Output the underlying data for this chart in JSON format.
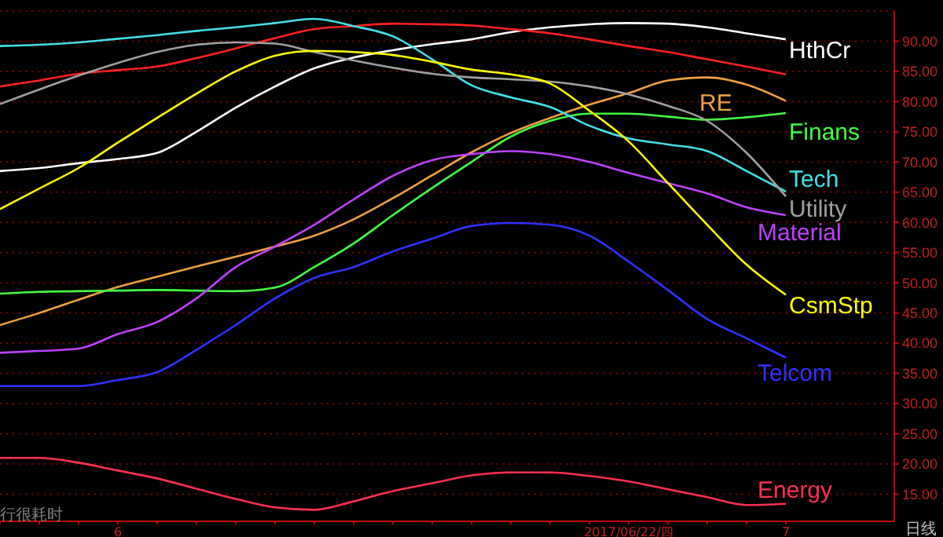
{
  "chart_data": {
    "type": "line",
    "categories": [
      null,
      null,
      null,
      "6",
      null,
      null,
      null,
      null,
      null,
      null,
      null,
      null,
      null,
      null,
      null,
      null,
      "2017/06/22/四",
      null,
      null,
      null,
      "7"
    ],
    "series": [
      {
        "name": "HthCr",
        "color": "#ffffff",
        "values": [
          68.5,
          69,
          69.8,
          70.5,
          71.5,
          75,
          79,
          82.5,
          85.5,
          87.3,
          88.5,
          89.5,
          90.3,
          91.5,
          92.3,
          92.8,
          93,
          92.9,
          92.3,
          91.3,
          90.3
        ]
      },
      {
        "color": "#ff2020",
        "values": [
          82.5,
          83.5,
          84.6,
          85.2,
          85.8,
          87.2,
          88.8,
          90.5,
          92,
          92.5,
          92.9,
          92.8,
          92.6,
          92,
          91.3,
          90.3,
          89.2,
          88.2,
          87,
          85.8,
          84.5
        ]
      },
      {
        "name": "RE",
        "color": "#f0a040",
        "values": [
          43,
          45,
          47.2,
          49.3,
          51,
          52.7,
          54.3,
          56,
          57.8,
          60.5,
          64,
          67.8,
          71.6,
          74.8,
          77.3,
          79.5,
          81.4,
          83.5,
          84,
          82.8,
          80.1
        ]
      },
      {
        "name": "Finans",
        "color": "#40ff40",
        "values": [
          48.2,
          48.5,
          48.6,
          48.7,
          48.8,
          48.7,
          48.6,
          49.2,
          52.6,
          56.5,
          61.2,
          65.7,
          70,
          74.2,
          76.8,
          78,
          78,
          77.5,
          77,
          77.4,
          78.1
        ]
      },
      {
        "name": "Tech",
        "color": "#40e0e8",
        "values": [
          89.2,
          89.4,
          89.8,
          90.4,
          91,
          91.7,
          92.3,
          93,
          93.7,
          92.5,
          90.8,
          87,
          82.7,
          80.7,
          79.1,
          76,
          73.9,
          72.9,
          71.8,
          68.5,
          65.1
        ]
      },
      {
        "name": "Utility",
        "color": "#a0a0a0",
        "values": [
          79.6,
          82,
          84.3,
          86.4,
          88.2,
          89.4,
          89.8,
          89.6,
          88.2,
          86.8,
          85.6,
          84.6,
          84,
          83.7,
          83.3,
          82.5,
          81.2,
          79.3,
          76.8,
          71.5,
          64.3
        ]
      },
      {
        "name": "Material",
        "color": "#c040ff",
        "values": [
          38.4,
          38.7,
          39.1,
          41.5,
          43.5,
          47.4,
          52.6,
          56,
          59.6,
          63.8,
          67.7,
          70.3,
          71.3,
          71.8,
          71.3,
          70,
          68.2,
          66.5,
          64.8,
          62.5,
          61.2
        ]
      },
      {
        "name": "CsmStp",
        "color": "#ffff00",
        "values": [
          62.2,
          65.6,
          69,
          73.2,
          77.3,
          81.3,
          85,
          87.6,
          88.4,
          88.2,
          87.7,
          86.6,
          85.3,
          84.5,
          83,
          78.5,
          73.4,
          66.5,
          59.6,
          53,
          48
        ]
      },
      {
        "name": "Telcom",
        "color": "#3030ff",
        "values": [
          32.9,
          32.9,
          32.9,
          33.9,
          35.2,
          38.9,
          43,
          47.4,
          50.8,
          52.6,
          55.2,
          57.3,
          59.4,
          59.9,
          59.6,
          57.8,
          53.5,
          48.8,
          44,
          40.8,
          37.6
        ]
      },
      {
        "name": "Energy",
        "color": "#ff3050",
        "values": [
          21,
          21,
          20.2,
          18.9,
          17.6,
          15.9,
          14.2,
          12.8,
          12.4,
          13.8,
          15.5,
          16.8,
          18.1,
          18.6,
          18.6,
          18,
          17.1,
          15.8,
          14.5,
          13.2,
          13.4
        ]
      }
    ],
    "ylim": [
      10.5,
      95
    ],
    "yticks": [
      {
        "value": 15,
        "label": "15.00"
      },
      {
        "value": 20,
        "label": "20.00"
      },
      {
        "value": 25,
        "label": "25.00"
      },
      {
        "value": 30,
        "label": "30.00"
      },
      {
        "value": 35,
        "label": "35.00"
      },
      {
        "value": 40,
        "label": "40.00"
      },
      {
        "value": 45,
        "label": "45.00"
      },
      {
        "value": 50,
        "label": "50.00"
      },
      {
        "value": 55,
        "label": "55.00"
      },
      {
        "value": 60,
        "label": "60.00"
      },
      {
        "value": 65,
        "label": "65.00"
      },
      {
        "value": 70,
        "label": "70.00"
      },
      {
        "value": 75,
        "label": "75.00"
      },
      {
        "value": 80,
        "label": "80.00"
      },
      {
        "value": 85,
        "label": "85.00"
      },
      {
        "value": 90,
        "label": "90.00"
      }
    ],
    "grid": "y",
    "legend": false,
    "marker": "none",
    "line_style": "solid",
    "annotations": [
      "行很耗时",
      "日线"
    ]
  }
}
